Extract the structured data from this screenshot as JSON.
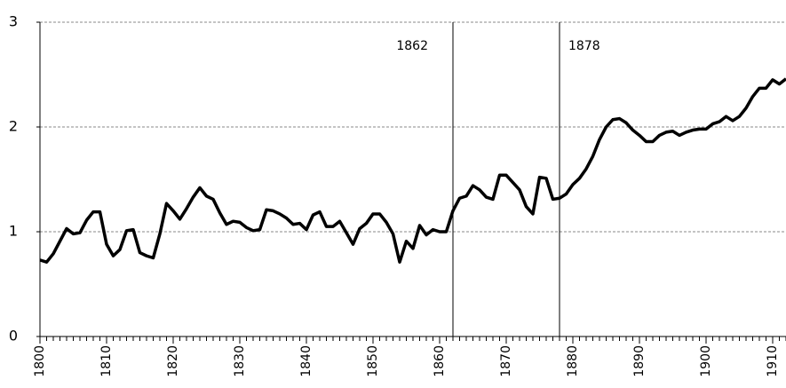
{
  "chart_data": {
    "type": "line",
    "x": [
      1800,
      1801,
      1802,
      1803,
      1804,
      1805,
      1806,
      1807,
      1808,
      1809,
      1810,
      1811,
      1812,
      1813,
      1814,
      1815,
      1816,
      1817,
      1818,
      1819,
      1820,
      1821,
      1822,
      1823,
      1824,
      1825,
      1826,
      1827,
      1828,
      1829,
      1830,
      1831,
      1832,
      1833,
      1834,
      1835,
      1836,
      1837,
      1838,
      1839,
      1840,
      1841,
      1842,
      1843,
      1844,
      1845,
      1846,
      1847,
      1848,
      1849,
      1850,
      1851,
      1852,
      1853,
      1854,
      1855,
      1856,
      1857,
      1858,
      1859,
      1860,
      1861,
      1862,
      1863,
      1864,
      1865,
      1866,
      1867,
      1868,
      1869,
      1870,
      1871,
      1872,
      1873,
      1874,
      1875,
      1876,
      1877,
      1878,
      1879,
      1880,
      1881,
      1882,
      1883,
      1884,
      1885,
      1886,
      1887,
      1888,
      1889,
      1890,
      1891,
      1892,
      1893,
      1894,
      1895,
      1896,
      1897,
      1898,
      1899,
      1900,
      1901,
      1902,
      1903,
      1904,
      1905,
      1906,
      1907,
      1908,
      1909,
      1910,
      1911,
      1912
    ],
    "values": [
      0.73,
      0.71,
      0.79,
      0.91,
      1.03,
      0.98,
      0.99,
      1.11,
      1.19,
      1.19,
      0.88,
      0.77,
      0.83,
      1.01,
      1.02,
      0.8,
      0.77,
      0.75,
      0.98,
      1.27,
      1.2,
      1.12,
      1.22,
      1.33,
      1.42,
      1.34,
      1.31,
      1.18,
      1.07,
      1.1,
      1.09,
      1.04,
      1.01,
      1.02,
      1.21,
      1.2,
      1.17,
      1.13,
      1.07,
      1.08,
      1.02,
      1.16,
      1.19,
      1.05,
      1.05,
      1.1,
      0.99,
      0.88,
      1.03,
      1.08,
      1.17,
      1.17,
      1.09,
      0.98,
      0.71,
      0.91,
      0.84,
      1.06,
      0.97,
      1.02,
      1.0,
      1.0,
      1.2,
      1.32,
      1.34,
      1.44,
      1.4,
      1.33,
      1.31,
      1.54,
      1.54,
      1.47,
      1.4,
      1.24,
      1.17,
      1.52,
      1.51,
      1.31,
      1.32,
      1.36,
      1.45,
      1.51,
      1.6,
      1.72,
      1.88,
      2.0,
      2.07,
      2.08,
      2.04,
      1.97,
      1.92,
      1.86,
      1.86,
      1.92,
      1.95,
      1.96,
      1.92,
      1.95,
      1.97,
      1.98,
      1.98,
      2.03,
      2.05,
      2.1,
      2.06,
      2.1,
      2.18,
      2.29,
      2.37,
      2.37,
      2.45,
      2.41,
      2.46
    ],
    "color": "#000000",
    "xlim": [
      1800,
      1912
    ],
    "xticks": [
      1800,
      1810,
      1820,
      1830,
      1840,
      1850,
      1860,
      1870,
      1880,
      1890,
      1900,
      1910
    ],
    "ylim": [
      0,
      3
    ],
    "yticks": [
      0,
      1,
      2,
      3
    ],
    "grid": true,
    "vlines": [
      1862,
      1878
    ]
  }
}
